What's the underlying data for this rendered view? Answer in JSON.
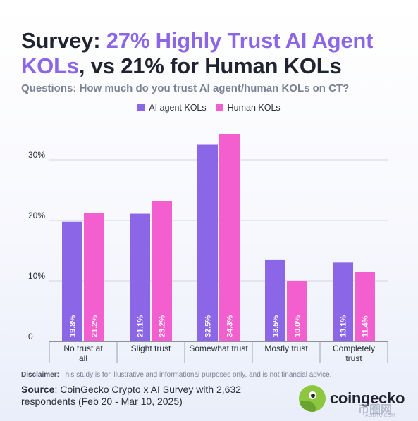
{
  "title": {
    "part1": "Survey: ",
    "part2": "27% Highly Trust AI Agent KOLs",
    "part3": ", vs 21% for Human KOLs"
  },
  "subtitle": "Questions: How much do you trust AI agent/human KOLs on CT?",
  "colors": {
    "ai": "#8b66e6",
    "human": "#f35fcf",
    "grid": "#d0d4de",
    "accent": "#8b66e6"
  },
  "chart_data": {
    "type": "bar",
    "categories": [
      "No trust at all",
      "Slight trust",
      "Somewhat trust",
      "Mostly trust",
      "Completely trust"
    ],
    "series": [
      {
        "name": "AI agent KOLs",
        "values": [
          19.8,
          21.1,
          32.5,
          13.5,
          13.1
        ],
        "labels": [
          "19.8%",
          "21.1%",
          "32.5%",
          "13.5%",
          "13.1%"
        ]
      },
      {
        "name": "Human KOLs",
        "values": [
          21.2,
          23.2,
          34.3,
          10.0,
          11.4
        ],
        "labels": [
          "21.2%",
          "23.2%",
          "34.3%",
          "10.0%",
          "11.4%"
        ]
      }
    ],
    "yticks": [
      0,
      10,
      20,
      30
    ],
    "ytick_labels": [
      "0",
      "10%",
      "20%",
      "30%"
    ],
    "ylim": [
      0,
      36
    ],
    "grid": true,
    "legend": "top-center"
  },
  "disclaimer": {
    "label": "Disclaimer:",
    "text": " This study is for illustrative and informational purposes only, and is not financial advice."
  },
  "source": {
    "label": "Source",
    "text": ": CoinGecko Crypto x AI Survey with 2,632 respondents (Feb 20 - Mar 10, 2025)"
  },
  "logo_text": "coingecko",
  "watermark": "币圈网",
  "watermark_sub": "ALIBTC.COM"
}
